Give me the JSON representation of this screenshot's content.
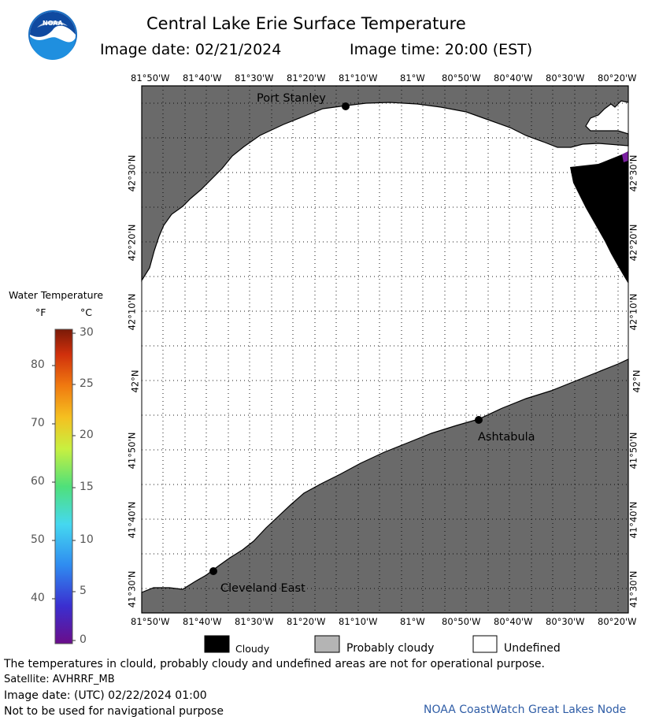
{
  "header": {
    "title": "Central Lake Erie Surface Temperature",
    "image_date": "Image date: 02/21/2024",
    "image_time": "Image time: 20:00 (EST)"
  },
  "logo": {
    "text": "NOAA"
  },
  "map": {
    "longitude_labels": [
      "81°50'W",
      "81°40'W",
      "81°30'W",
      "81°20'W",
      "81°10'W",
      "81°W",
      "80°50'W",
      "80°40'W",
      "80°30'W",
      "80°20'W"
    ],
    "latitude_labels": [
      "42°30'N",
      "42°20'N",
      "42°10'N",
      "42°N",
      "41°50'N",
      "41°40'N",
      "41°30'N"
    ],
    "cities": [
      {
        "name": "Port Stanley"
      },
      {
        "name": "Ashtabula"
      },
      {
        "name": "Cleveland East"
      }
    ],
    "colors": {
      "land": "#6a6a6a",
      "water_undefined": "#ffffff",
      "cloudy": "#000000",
      "grid": "#000000"
    }
  },
  "legend": {
    "title": "Water Temperature",
    "unit_f": "°F",
    "unit_c": "°C",
    "fahrenheit_ticks": [
      "80",
      "70",
      "60",
      "50",
      "40"
    ],
    "celsius_ticks": [
      "30",
      "25",
      "20",
      "15",
      "10",
      "5",
      "0"
    ],
    "colormap": [
      "#6a0d8a",
      "#3a2fd0",
      "#2f8cf0",
      "#45d8f0",
      "#4fe07a",
      "#c8f040",
      "#f5c020",
      "#f07a10",
      "#d0300c",
      "#7a1a08"
    ]
  },
  "key": {
    "cloudy": "Cloudy",
    "probably_cloudy": "Probably cloudy",
    "undefined": "Undefined",
    "colors": {
      "cloudy": "#000000",
      "probably_cloudy": "#b4b4b4",
      "undefined": "#ffffff"
    }
  },
  "footer": {
    "disclaimer": "The temperatures in clould, probably cloudy and undefined areas are not for operational purpose.",
    "satellite": "Satellite: AVHRRF_MB",
    "utc_date": "Image date: (UTC) 02/22/2024  01:00",
    "navigation": "Not to be used for navigational purpose",
    "credit": "NOAA CoastWatch Great Lakes Node"
  }
}
